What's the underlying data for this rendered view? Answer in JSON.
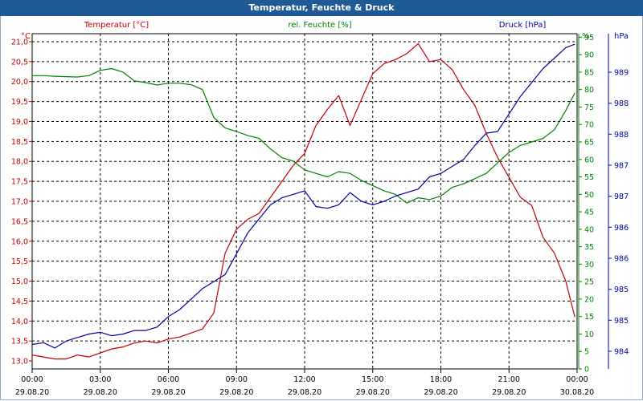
{
  "window": {
    "title": "Temperatur, Feuchte & Druck"
  },
  "colors": {
    "temperature": "#c00000",
    "humidity": "#008000",
    "pressure": "#0000a0",
    "titlebar": "#1f5a94"
  },
  "chart_data": {
    "type": "line",
    "title": "Temperatur, Feuchte & Druck",
    "grid": true,
    "x_ticks": [
      {
        "time": "00:00",
        "date": "29.08.20"
      },
      {
        "time": "03:00",
        "date": "29.08.20"
      },
      {
        "time": "06:00",
        "date": "29.08.20"
      },
      {
        "time": "09:00",
        "date": "29.08.20"
      },
      {
        "time": "12:00",
        "date": "29.08.20"
      },
      {
        "time": "15:00",
        "date": "29.08.20"
      },
      {
        "time": "18:00",
        "date": "29.08.20"
      },
      {
        "time": "21:00",
        "date": "29.08.20"
      },
      {
        "time": "00:00",
        "date": "30.08.20"
      }
    ],
    "axes": {
      "temperature": {
        "label": "Temperatur [°C]",
        "unit": "°C",
        "range": [
          12.8,
          21.2
        ],
        "ticks": [
          "13,0",
          "13,5",
          "14,0",
          "14,5",
          "15,0",
          "15,5",
          "16,0",
          "16,5",
          "17,0",
          "17,5",
          "18,0",
          "18,5",
          "19,0",
          "19,5",
          "20,0",
          "20,5",
          "21,0"
        ]
      },
      "humidity": {
        "label": "rel. Feuchte [%]",
        "unit": "%",
        "range": [
          0,
          96
        ],
        "ticks": [
          "0",
          "5",
          "10",
          "15",
          "20",
          "25",
          "30",
          "35",
          "40",
          "45",
          "50",
          "55",
          "60",
          "65",
          "70",
          "75",
          "80",
          "85",
          "90",
          "95"
        ]
      },
      "pressure": {
        "label": "Druck [hPa]",
        "unit": "hPa",
        "ticks": [
          "984",
          "985",
          "985",
          "986",
          "986",
          "987",
          "987",
          "988",
          "988",
          "989"
        ]
      }
    },
    "series": [
      {
        "name": "Temperatur [°C]",
        "axis": "temperature",
        "x": [
          0,
          0.5,
          1,
          1.5,
          2,
          2.5,
          3,
          3.5,
          4,
          4.5,
          5,
          5.5,
          6,
          6.5,
          7,
          7.5,
          8,
          8.5,
          9,
          9.5,
          10,
          10.5,
          11,
          11.5,
          12,
          12.5,
          13,
          13.5,
          14,
          14.5,
          15,
          15.5,
          16,
          16.5,
          17,
          17.5,
          18,
          18.5,
          19,
          19.5,
          20,
          20.5,
          21,
          21.5,
          22,
          22.5,
          23,
          23.5,
          23.9
        ],
        "values": [
          13.15,
          13.1,
          13.05,
          13.05,
          13.15,
          13.1,
          13.2,
          13.3,
          13.35,
          13.45,
          13.5,
          13.45,
          13.55,
          13.6,
          13.7,
          13.8,
          14.2,
          15.7,
          16.3,
          16.55,
          16.7,
          17.1,
          17.5,
          17.9,
          18.2,
          18.9,
          19.3,
          19.65,
          18.9,
          19.55,
          20.2,
          20.45,
          20.55,
          20.7,
          20.95,
          20.5,
          20.55,
          20.3,
          19.8,
          19.4,
          18.7,
          18.1,
          17.6,
          17.1,
          16.9,
          16.1,
          15.7,
          15.0,
          14.1
        ]
      },
      {
        "name": "rel. Feuchte [%]",
        "axis": "humidity",
        "x": [
          0,
          0.5,
          1,
          1.5,
          2,
          2.5,
          3,
          3.5,
          4,
          4.5,
          5,
          5.5,
          6,
          6.5,
          7,
          7.5,
          8,
          8.5,
          9,
          9.5,
          10,
          10.5,
          11,
          11.5,
          12,
          12.5,
          13,
          13.5,
          14,
          14.5,
          15,
          15.5,
          16,
          16.5,
          17,
          17.5,
          18,
          18.5,
          19,
          19.5,
          20,
          20.5,
          21,
          21.5,
          22,
          22.5,
          23,
          23.5,
          23.9
        ],
        "values": [
          84,
          84,
          83.8,
          83.7,
          83.6,
          84,
          85.5,
          86,
          85,
          82.5,
          82,
          81.3,
          81.8,
          81.8,
          81.4,
          80,
          72,
          69,
          68,
          66.8,
          66,
          63,
          60.5,
          59.5,
          57,
          56,
          55,
          56.5,
          56,
          54,
          52.5,
          51,
          50,
          47.5,
          49,
          48.5,
          49.5,
          52,
          53,
          54.5,
          56,
          59,
          62,
          64,
          65,
          66,
          68.5,
          74,
          79
        ]
      },
      {
        "name": "Druck [hPa]",
        "axis": "humidity",
        "x": [
          0,
          0.5,
          1,
          1.5,
          2,
          2.5,
          3,
          3.5,
          4,
          4.5,
          5,
          5.5,
          6,
          6.5,
          7,
          7.5,
          8,
          8.5,
          9,
          9.5,
          10,
          10.5,
          11,
          11.5,
          12,
          12.5,
          13,
          13.5,
          14,
          14.5,
          15,
          15.5,
          16,
          16.5,
          17,
          17.5,
          18,
          18.5,
          19,
          19.5,
          20,
          20.5,
          21,
          21.5,
          22,
          22.5,
          23,
          23.5,
          23.9
        ],
        "values": [
          7,
          7.5,
          6,
          8,
          9,
          10,
          10.5,
          9.5,
          10,
          11,
          11,
          12,
          15,
          17,
          20,
          23,
          25,
          27,
          33,
          39,
          43,
          47,
          49,
          50,
          51,
          46.5,
          46,
          47,
          50.5,
          48,
          47,
          48,
          49.5,
          50.5,
          51.5,
          55,
          56,
          58,
          60,
          64,
          67.5,
          68,
          73,
          78,
          82,
          86,
          89,
          92,
          93
        ]
      }
    ]
  }
}
